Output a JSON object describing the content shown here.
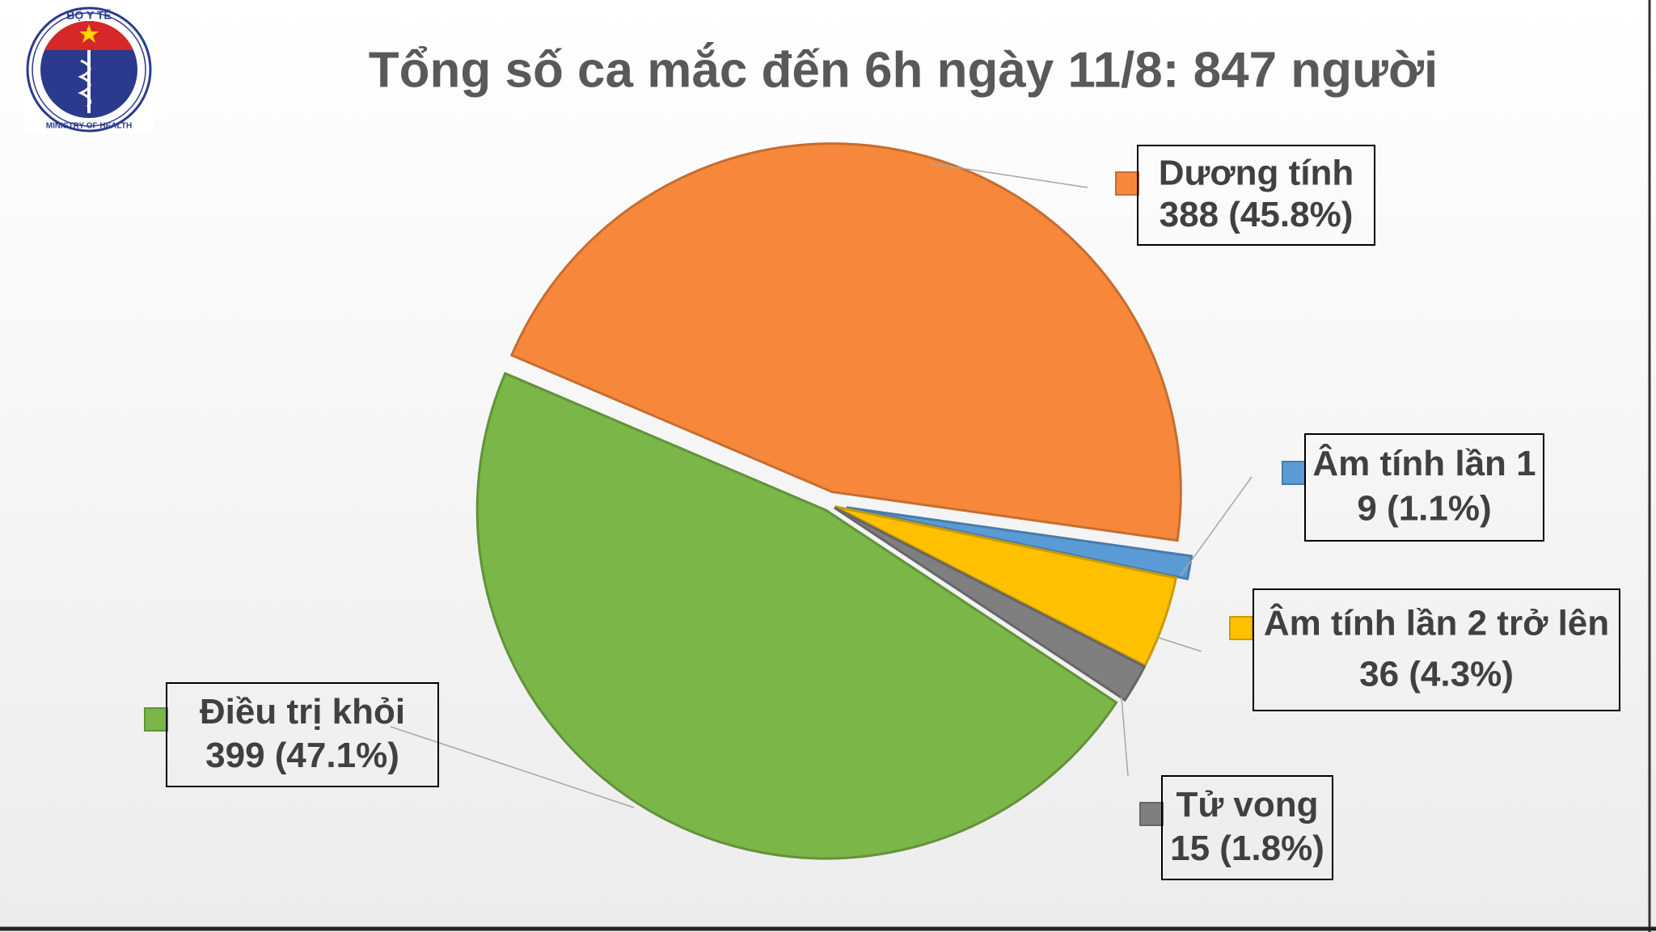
{
  "logo": {
    "top": "BỘ Y TẾ",
    "bottom": "MINISTRY OF HEALTH"
  },
  "chart_data": {
    "type": "pie",
    "title": "Tổng số ca mắc đến 6h ngày 11/8: 847 người",
    "categories": [
      "Dương tính",
      "Âm tính lần 1",
      "Âm tính lần 2 trở lên",
      "Tử vong",
      "Điều trị khỏi"
    ],
    "values": [
      388,
      9,
      36,
      15,
      399
    ],
    "value_labels": [
      "388 (45.8%)",
      "9 (1.1%)",
      "36 (4.3%)",
      "15 (1.8%)",
      "399 (47.1%)"
    ],
    "colors": [
      "#f7883b",
      "#5b9bd5",
      "#ffc000",
      "#7f7f7f",
      "#7ab648"
    ]
  }
}
